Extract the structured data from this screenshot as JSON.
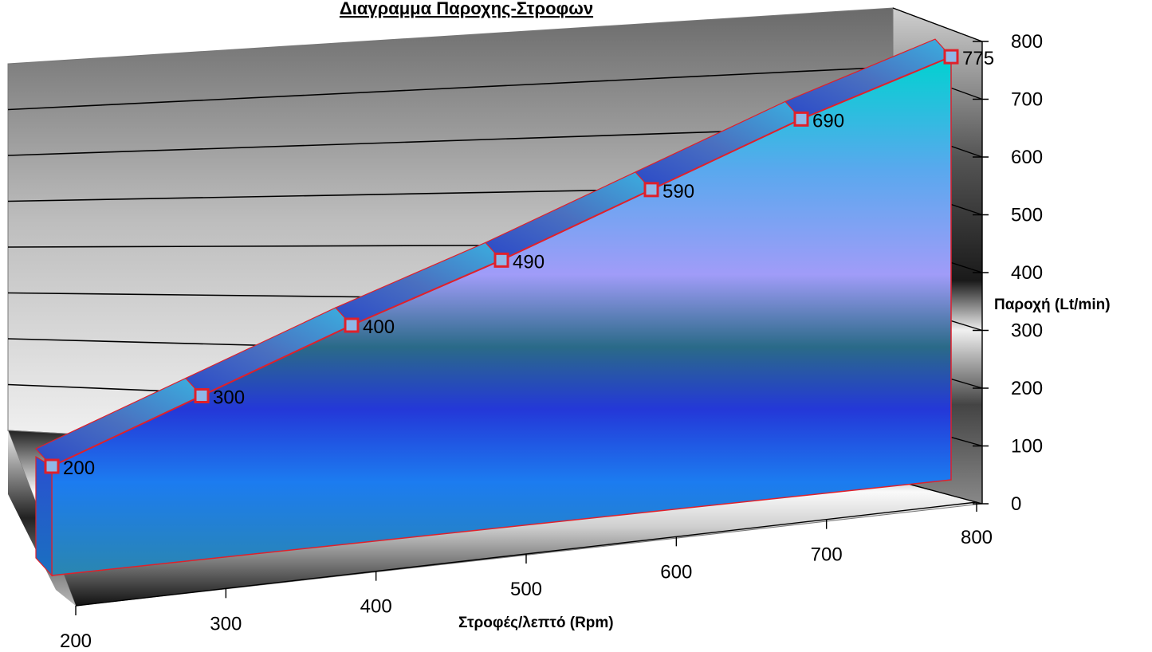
{
  "chart_data": {
    "type": "area",
    "title": "Διαγραμμα Παροχης-Στροφων",
    "xlabel": "Στροφές/λεπτό  (Rpm)",
    "ylabel": "Παροχή  (Lt/min)",
    "x": [
      200,
      300,
      400,
      500,
      600,
      700,
      800
    ],
    "series": [
      {
        "values": [
          200,
          300,
          400,
          490,
          590,
          690,
          775
        ]
      }
    ],
    "x_ticks": [
      "200",
      "300",
      "400",
      "500",
      "600",
      "700",
      "800"
    ],
    "y_ticks": [
      "0",
      "100",
      "200",
      "300",
      "400",
      "500",
      "600",
      "700",
      "800"
    ],
    "xlim": [
      200,
      800
    ],
    "ylim": [
      0,
      800
    ],
    "grid": true,
    "colors": {
      "line": "#e0202a",
      "marker_border": "#e0202a",
      "marker_fill": "#8fb8e8"
    }
  }
}
